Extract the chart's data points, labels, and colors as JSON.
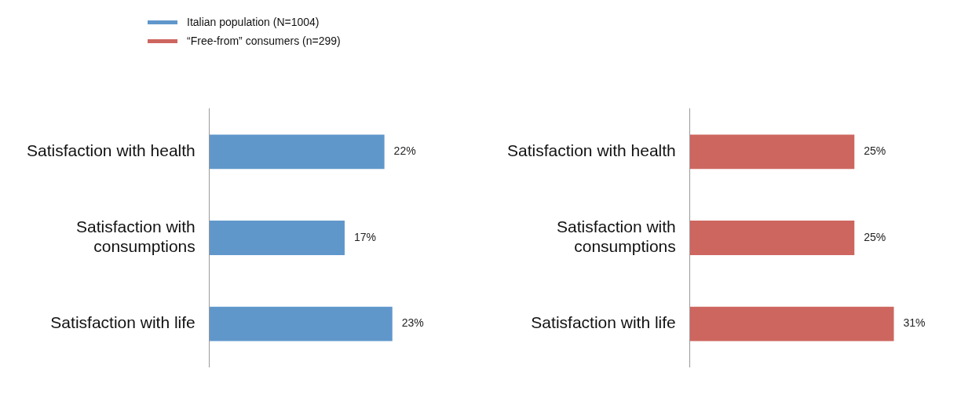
{
  "chart_data": [
    {
      "type": "bar",
      "orientation": "horizontal",
      "categories": [
        "Satisfaction with health",
        "Satisfaction with consumptions",
        "Satisfaction with life"
      ],
      "tick_labels": "y",
      "legend": "top left",
      "series": [
        {
          "name": "Italian population (N=1004)",
          "color": "#6097cb",
          "values": [
            22,
            17,
            23
          ],
          "value_labels": [
            "22%",
            "17%",
            "23%"
          ]
        }
      ]
    },
    {
      "type": "bar",
      "orientation": "horizontal",
      "categories": [
        "Satisfaction with health",
        "Satisfaction with consumptions",
        "Satisfaction with life"
      ],
      "tick_labels": "y",
      "legend": "top left",
      "series": [
        {
          "name": "“Free-from” consumers (n=299)",
          "color": "#cd665f",
          "values": [
            25,
            25,
            31
          ],
          "value_labels": [
            "25%",
            "25%",
            "31%"
          ]
        }
      ]
    }
  ]
}
